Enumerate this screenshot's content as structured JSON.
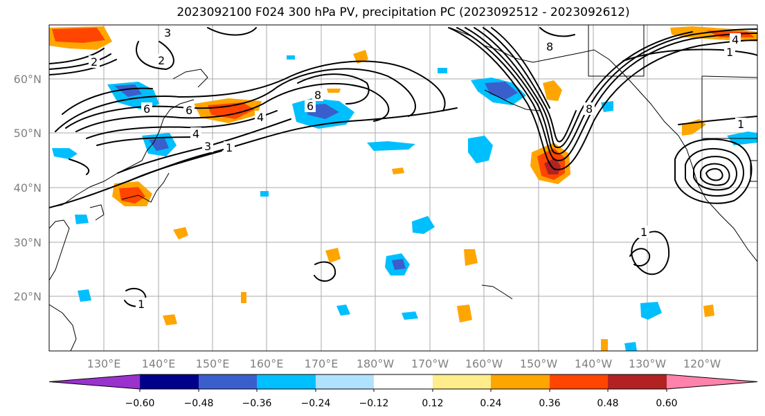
{
  "title": "2023092100 F024 300 hPa PV, precipitation PC (2023092512 - 2023092612)",
  "lat_labels": [
    "60°N",
    "50°N",
    "40°N",
    "30°N",
    "20°N"
  ],
  "lon_labels": [
    "130°E",
    "140°E",
    "150°E",
    "160°E",
    "170°E",
    "180°W",
    "170°W",
    "160°W",
    "150°W",
    "140°W",
    "130°W",
    "120°W"
  ],
  "colorbar": {
    "tick_labels": [
      "−0.60",
      "−0.48",
      "−0.36",
      "−0.24",
      "−0.12",
      "0.12",
      "0.24",
      "0.36",
      "0.48",
      "0.60"
    ],
    "colors": [
      "#9a32cd",
      "#00008b",
      "#3a5fcd",
      "#00bfff",
      "#b0e2ff",
      "#ffffff",
      "#ffec8b",
      "#ffa500",
      "#ff4500",
      "#b22222",
      "#ff82ab"
    ]
  },
  "contour_labels": [
    "3",
    "2",
    "6",
    "6",
    "4",
    "3",
    "1",
    "4",
    "6",
    "8",
    "8",
    "2",
    "8",
    "1",
    "4",
    "1",
    "1",
    "1"
  ],
  "colors": {
    "positive": "#ffa500",
    "positive_strong": "#ff4500",
    "negative": "#00bfff",
    "negative_strong": "#3a5fcd"
  }
}
